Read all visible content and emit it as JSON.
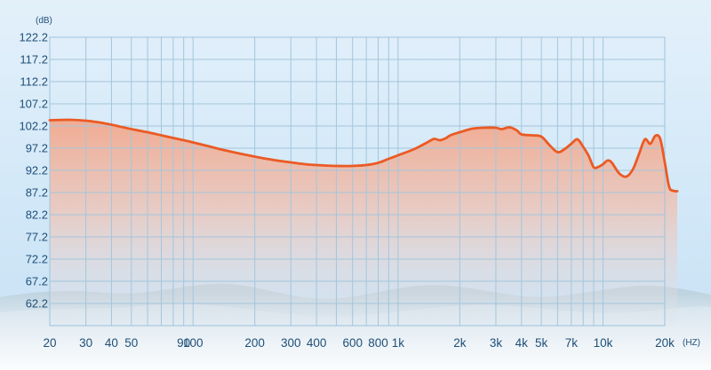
{
  "chart_data": {
    "type": "area",
    "title": "",
    "xlabel": "",
    "ylabel": "",
    "y_unit": "(dB)",
    "x_unit": "(HZ)",
    "x_scale": "log",
    "xlim": [
      20,
      20000
    ],
    "ylim": [
      57.2,
      122.2
    ],
    "grid": true,
    "legend": "none",
    "y_ticks": [
      {
        "v": 122.2,
        "label": "122.2"
      },
      {
        "v": 117.2,
        "label": "117.2"
      },
      {
        "v": 112.2,
        "label": "112.2"
      },
      {
        "v": 107.2,
        "label": "107.2"
      },
      {
        "v": 102.2,
        "label": "102.2"
      },
      {
        "v": 97.2,
        "label": "97.2"
      },
      {
        "v": 92.2,
        "label": "92.2"
      },
      {
        "v": 87.2,
        "label": "87.2"
      },
      {
        "v": 82.2,
        "label": "82.2"
      },
      {
        "v": 77.2,
        "label": "77.2"
      },
      {
        "v": 72.2,
        "label": "72.2"
      },
      {
        "v": 67.2,
        "label": "67.2"
      },
      {
        "v": 62.2,
        "label": "62.2"
      }
    ],
    "x_ticks": [
      {
        "v": 20,
        "label": "20"
      },
      {
        "v": 30,
        "label": "30"
      },
      {
        "v": 40,
        "label": "40"
      },
      {
        "v": 50,
        "label": "50"
      },
      {
        "v": 90,
        "label": "90"
      },
      {
        "v": 100,
        "label": "100"
      },
      {
        "v": 200,
        "label": "200"
      },
      {
        "v": 300,
        "label": "300"
      },
      {
        "v": 400,
        "label": "400"
      },
      {
        "v": 600,
        "label": "600"
      },
      {
        "v": 800,
        "label": "800"
      },
      {
        "v": 1000,
        "label": "1k"
      },
      {
        "v": 2000,
        "label": "2k"
      },
      {
        "v": 3000,
        "label": "3k"
      },
      {
        "v": 4000,
        "label": "4k"
      },
      {
        "v": 5000,
        "label": "5k"
      },
      {
        "v": 7000,
        "label": "7k"
      },
      {
        "v": 10000,
        "label": "10k"
      },
      {
        "v": 20000,
        "label": "20k"
      }
    ],
    "grid_x": [
      20,
      30,
      40,
      50,
      60,
      70,
      80,
      90,
      100,
      200,
      300,
      400,
      500,
      600,
      700,
      800,
      900,
      1000,
      2000,
      3000,
      4000,
      5000,
      6000,
      7000,
      8000,
      9000,
      10000,
      20000
    ],
    "series": [
      {
        "color": "#eb5a24",
        "points": [
          [
            20,
            103.5
          ],
          [
            25,
            103.6
          ],
          [
            30,
            103.4
          ],
          [
            35,
            103.0
          ],
          [
            40,
            102.5
          ],
          [
            50,
            101.5
          ],
          [
            60,
            100.8
          ],
          [
            70,
            100.1
          ],
          [
            80,
            99.5
          ],
          [
            90,
            99.0
          ],
          [
            100,
            98.5
          ],
          [
            120,
            97.6
          ],
          [
            150,
            96.5
          ],
          [
            200,
            95.3
          ],
          [
            250,
            94.5
          ],
          [
            300,
            94.0
          ],
          [
            350,
            93.6
          ],
          [
            400,
            93.4
          ],
          [
            500,
            93.2
          ],
          [
            600,
            93.2
          ],
          [
            700,
            93.4
          ],
          [
            800,
            93.9
          ],
          [
            900,
            94.8
          ],
          [
            1000,
            95.6
          ],
          [
            1200,
            97.0
          ],
          [
            1400,
            98.6
          ],
          [
            1500,
            99.3
          ],
          [
            1600,
            99.0
          ],
          [
            1700,
            99.4
          ],
          [
            1800,
            100.1
          ],
          [
            2000,
            100.8
          ],
          [
            2300,
            101.6
          ],
          [
            2600,
            101.8
          ],
          [
            3000,
            101.8
          ],
          [
            3200,
            101.5
          ],
          [
            3500,
            101.9
          ],
          [
            3800,
            101.2
          ],
          [
            4000,
            100.3
          ],
          [
            4500,
            100.1
          ],
          [
            5000,
            99.8
          ],
          [
            5500,
            97.8
          ],
          [
            6000,
            96.3
          ],
          [
            6500,
            97.0
          ],
          [
            7000,
            98.2
          ],
          [
            7500,
            99.2
          ],
          [
            8000,
            97.5
          ],
          [
            8500,
            95.5
          ],
          [
            9000,
            92.9
          ],
          [
            9500,
            93.0
          ],
          [
            10000,
            93.6
          ],
          [
            10500,
            94.4
          ],
          [
            11000,
            94.0
          ],
          [
            12000,
            91.5
          ],
          [
            13000,
            90.8
          ],
          [
            14000,
            92.5
          ],
          [
            15000,
            96.0
          ],
          [
            16000,
            99.2
          ],
          [
            17000,
            98.2
          ],
          [
            18000,
            100.0
          ],
          [
            19000,
            99.3
          ],
          [
            20000,
            94.0
          ],
          [
            21000,
            88.5
          ],
          [
            22000,
            87.6
          ],
          [
            23000,
            87.5
          ]
        ]
      }
    ]
  }
}
